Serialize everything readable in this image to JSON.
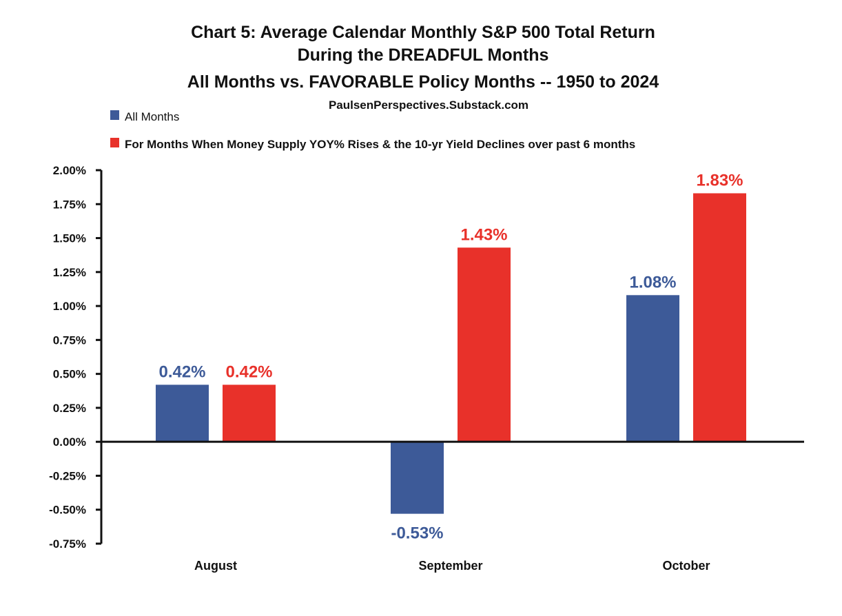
{
  "chart_data": {
    "type": "bar",
    "title_lines": [
      "Chart 5: Average Calendar Monthly S&P 500 Total Return",
      "During the DREADFUL Months",
      "All Months vs. FAVORABLE Policy Months -- 1950 to 2024"
    ],
    "subtitle": "PaulsenPerspectives.Substack.com",
    "categories": [
      "August",
      "September",
      "October"
    ],
    "series": [
      {
        "name": "All Months",
        "color": "#3d5a98",
        "values": [
          0.42,
          -0.53,
          1.08
        ],
        "labels": [
          "0.42%",
          "-0.53%",
          "1.08%"
        ]
      },
      {
        "name": "For Months When Money  Supply YOY% Rises & the 10-yr Yield Declines over past 6 months",
        "color": "#e8312a",
        "values": [
          0.42,
          1.43,
          1.83
        ],
        "labels": [
          "0.42%",
          "1.43%",
          "1.83%"
        ]
      }
    ],
    "ylim": [
      -0.75,
      2.0
    ],
    "y_ticks": [
      2.0,
      1.75,
      1.5,
      1.25,
      1.0,
      0.75,
      0.5,
      0.25,
      0.0,
      -0.25,
      -0.5,
      -0.75
    ],
    "y_tick_labels": [
      "2.00%",
      "1.75%",
      "1.50%",
      "1.25%",
      "1.00%",
      "0.75%",
      "0.50%",
      "0.25%",
      "0.00%",
      "-0.25%",
      "-0.50%",
      "-0.75%"
    ],
    "xlabel": "",
    "ylabel": "",
    "grid": false,
    "legend_position": "top-left"
  }
}
